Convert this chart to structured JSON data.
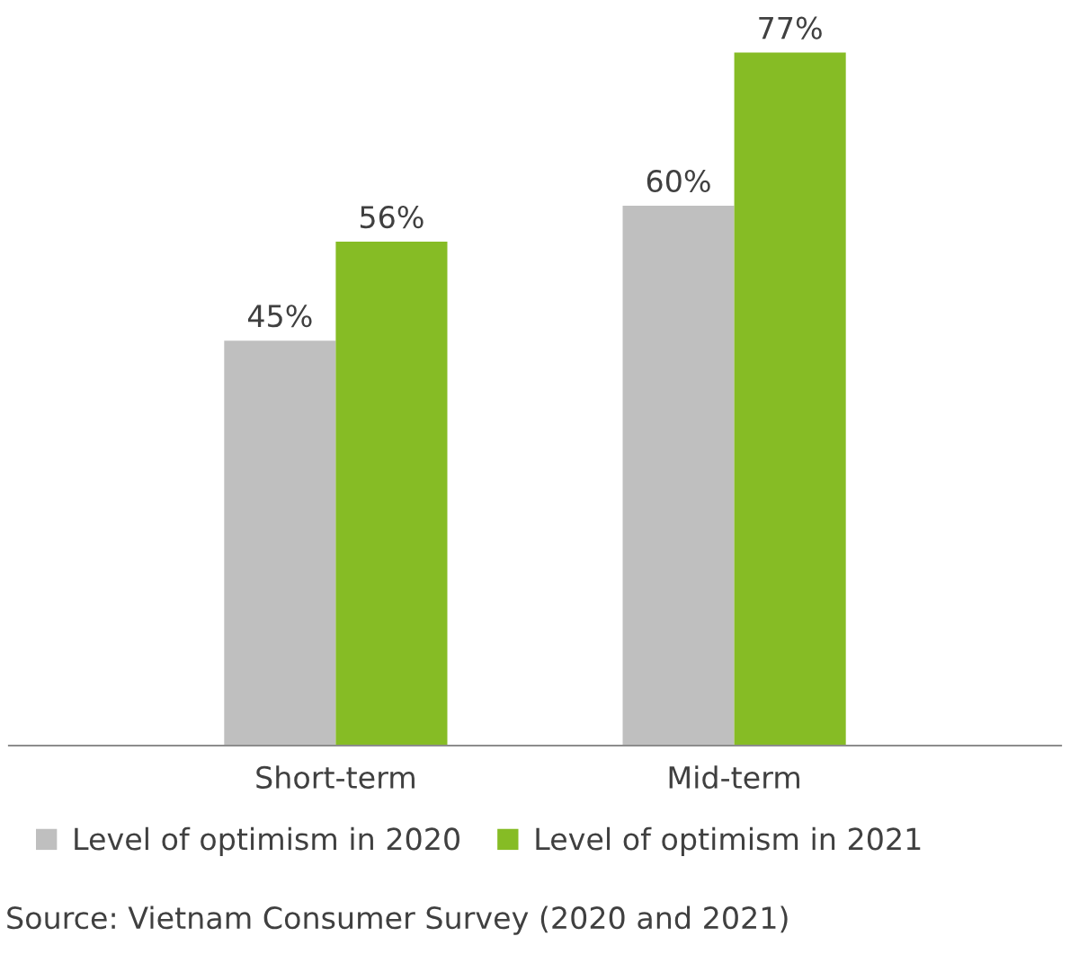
{
  "chart_data": {
    "type": "bar",
    "categories": [
      "Short-term",
      "Mid-term"
    ],
    "series": [
      {
        "name": "Level of optimism in 2020",
        "color": "#bfbfbf",
        "values": [
          45,
          60
        ],
        "value_labels": [
          "45%",
          "60%"
        ]
      },
      {
        "name": "Level of optimism in 2021",
        "color": "#86bc25",
        "values": [
          56,
          77
        ],
        "value_labels": [
          "56%",
          "77%"
        ]
      }
    ],
    "tick_labels": "x",
    "grid": false,
    "legend": "bottom",
    "annotations": [
      "Source: Vietnam Consumer Survey (2020 and 2021)"
    ]
  }
}
